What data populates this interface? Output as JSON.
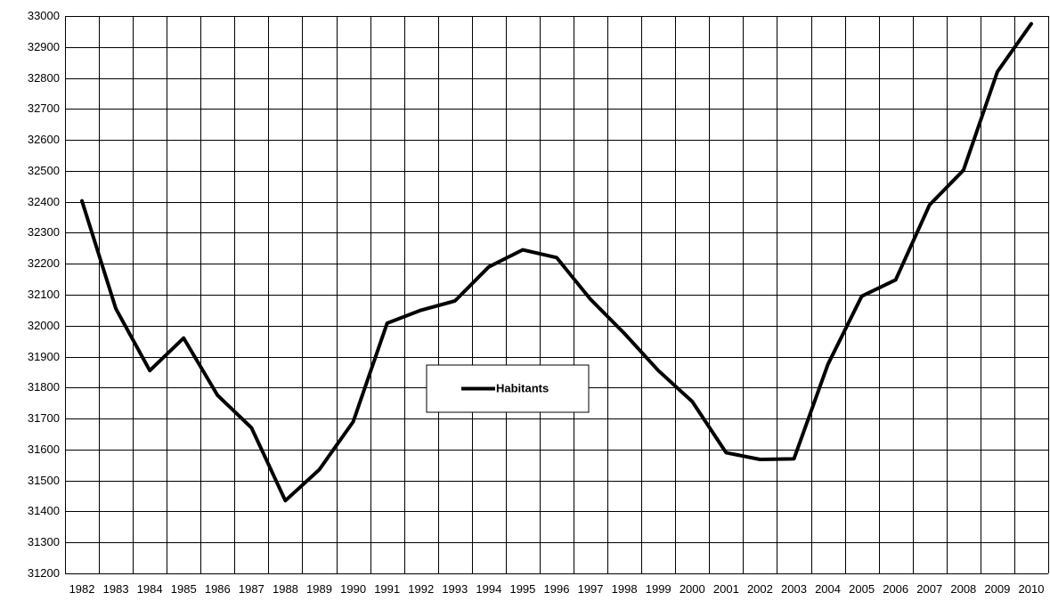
{
  "chart_data": {
    "type": "line",
    "x": [
      "1982",
      "1983",
      "1984",
      "1985",
      "1986",
      "1987",
      "1988",
      "1989",
      "1990",
      "1991",
      "1992",
      "1993",
      "1994",
      "1995",
      "1996",
      "1997",
      "1998",
      "1999",
      "2000",
      "2001",
      "2002",
      "2003",
      "2004",
      "2005",
      "2006",
      "2007",
      "2008",
      "2009",
      "2010"
    ],
    "series": [
      {
        "name": "Habitants",
        "color": "#000000",
        "values": [
          32403,
          32055,
          31855,
          31960,
          31775,
          31670,
          31435,
          31535,
          31690,
          32008,
          32050,
          32080,
          32190,
          32245,
          32220,
          32085,
          31975,
          31855,
          31755,
          31590,
          31568,
          31570,
          31875,
          32095,
          32148,
          32390,
          32502,
          32820,
          32975
        ]
      }
    ],
    "ylim": [
      31200,
      33000
    ],
    "yticks": [
      31200,
      31300,
      31400,
      31500,
      31600,
      31700,
      31800,
      31900,
      32000,
      32100,
      32200,
      32300,
      32400,
      32500,
      32600,
      32700,
      32800,
      32900,
      33000
    ],
    "grid": true,
    "legend": "center"
  }
}
